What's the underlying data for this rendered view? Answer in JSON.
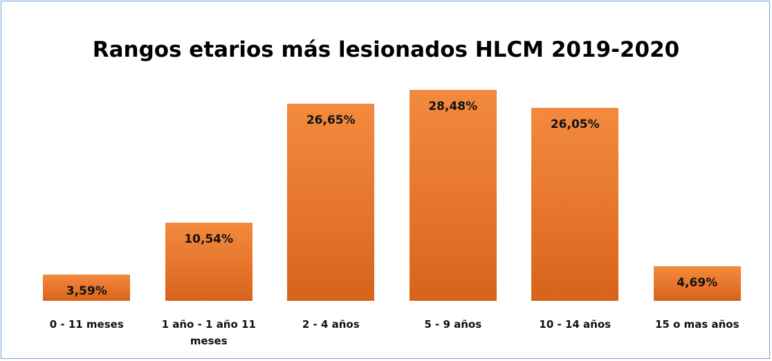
{
  "chart_data": {
    "type": "bar",
    "title": "Rangos etarios más lesionados HLCM 2019-2020",
    "categories": [
      "0 - 11 meses",
      "1 año - 1 año 11 meses",
      "2 - 4 años",
      "5 - 9 años",
      "10 - 14 años",
      "15 o mas años"
    ],
    "values": [
      3.59,
      10.54,
      26.65,
      28.48,
      26.05,
      4.69
    ],
    "value_labels": [
      "3,59%",
      "10,54%",
      "26,65%",
      "28,48%",
      "26,05%",
      "4,69%"
    ],
    "color": "#e8772e"
  }
}
